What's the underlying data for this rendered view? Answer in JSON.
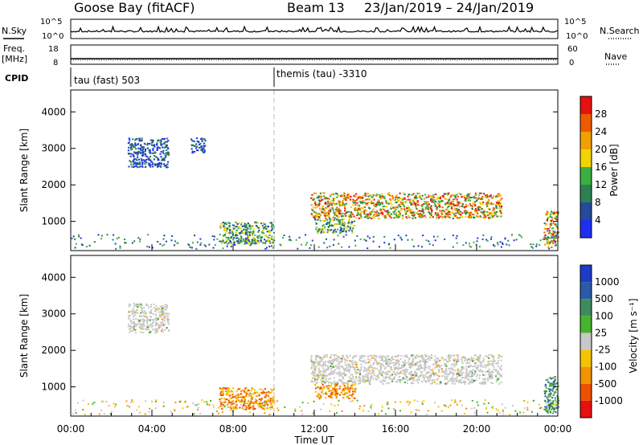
{
  "header": {
    "station": "Goose Bay (fitACF)",
    "beam": "Beam 13",
    "dates": "23/Jan/2019 – 24/Jan/2019"
  },
  "params": {
    "nsky_label": "N.Sky",
    "nsky_ticks": [
      "10^5",
      "10^0"
    ],
    "nsearch_label": "N.Search",
    "nsearch_ticks": [
      "10^5",
      "10^0"
    ],
    "freq_label": "Freq.",
    "freq_unit": "[MHz]",
    "freq_ticks": [
      "18",
      "8"
    ],
    "nave_label": "Nave",
    "nave_ticks": [
      "60",
      "0"
    ],
    "cpid_label": "CPID",
    "cpid_segments": [
      {
        "label": "tau (fast) 503"
      },
      {
        "label": "themis (tau) -3310"
      }
    ]
  },
  "chart_data": [
    {
      "type": "heatmap",
      "title": "Power",
      "ylabel": "Slant Range [km]",
      "ylim": [
        200,
        4600
      ],
      "yticks": [
        1000,
        2000,
        3000,
        4000
      ],
      "xlim_hours": [
        0,
        24
      ],
      "colorbar": {
        "label": "Power [dB]",
        "ticks": [
          "4",
          "8",
          "12",
          "16",
          "20",
          "24",
          "28"
        ],
        "colors": [
          "#1f2ff0",
          "#254a9c",
          "#2e7f52",
          "#39b042",
          "#f2d400",
          "#f0a000",
          "#ef5a00",
          "#e81010"
        ]
      },
      "echo_regions": [
        {
          "t_start": 2.8,
          "t_end": 4.8,
          "range_start": 2500,
          "range_end": 3300,
          "level": "low"
        },
        {
          "t_start": 5.9,
          "t_end": 6.6,
          "range_start": 2900,
          "range_end": 3300,
          "level": "low"
        },
        {
          "t_start": 7.3,
          "t_end": 10.0,
          "range_start": 400,
          "range_end": 1000,
          "level": "medium"
        },
        {
          "t_start": 11.8,
          "t_end": 21.2,
          "range_start": 1100,
          "range_end": 1800,
          "level": "high"
        },
        {
          "t_start": 12.0,
          "t_end": 14.0,
          "range_start": 700,
          "range_end": 1100,
          "level": "medium"
        },
        {
          "t_start": 23.3,
          "t_end": 24.0,
          "range_start": 300,
          "range_end": 1300,
          "level": "high"
        }
      ]
    },
    {
      "type": "heatmap",
      "title": "Velocity",
      "ylabel": "Slant Range [km]",
      "ylim": [
        200,
        4600
      ],
      "yticks": [
        1000,
        2000,
        3000,
        4000
      ],
      "xlim_hours": [
        0,
        24
      ],
      "xlabel": "Time UT",
      "xticks": [
        "00:00",
        "04:00",
        "08:00",
        "12:00",
        "16:00",
        "20:00",
        "00:00"
      ],
      "colorbar": {
        "label": "Velocity [m s⁻¹]",
        "ticks": [
          "1000",
          "500",
          "100",
          "25",
          "-25",
          "-100",
          "-500",
          "-1000"
        ],
        "colors": [
          "#1c3cc8",
          "#2a5aa8",
          "#3e8c5e",
          "#46b42c",
          "#c8c8c8",
          "#f5c400",
          "#f29300",
          "#ef5000",
          "#e81010"
        ]
      },
      "echo_regions": [
        {
          "t_start": 2.8,
          "t_end": 4.8,
          "range_start": 2500,
          "range_end": 3300,
          "level": "ground"
        },
        {
          "t_start": 7.3,
          "t_end": 10.0,
          "range_start": 400,
          "range_end": 1000,
          "level": "negative"
        },
        {
          "t_start": 11.8,
          "t_end": 21.2,
          "range_start": 1100,
          "range_end": 1900,
          "level": "ground"
        },
        {
          "t_start": 12.0,
          "t_end": 14.0,
          "range_start": 700,
          "range_end": 1100,
          "level": "negative"
        },
        {
          "t_start": 23.3,
          "t_end": 24.0,
          "range_start": 300,
          "range_end": 1300,
          "level": "positive"
        }
      ]
    }
  ]
}
